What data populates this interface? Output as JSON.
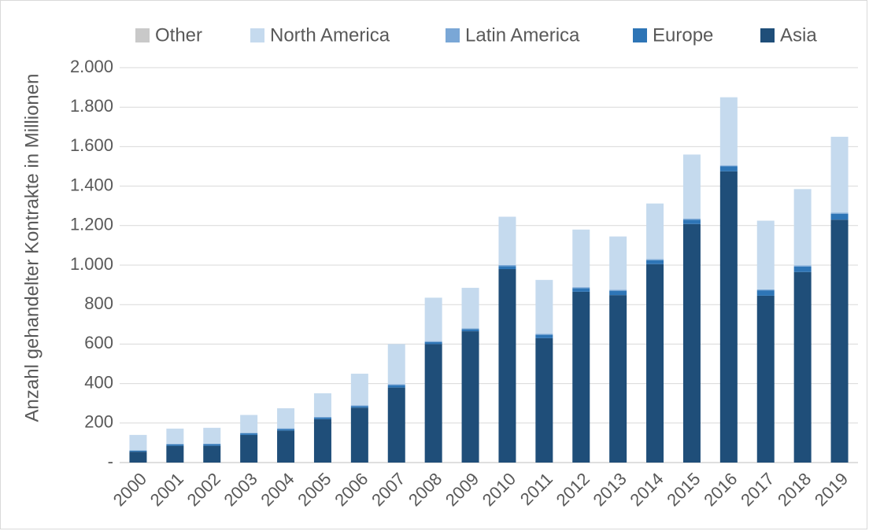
{
  "chart_data": {
    "type": "stacked_bar",
    "y_label": "Anzahl gehandelter Kontrakte in Millionen",
    "categories": [
      "2000",
      "2001",
      "2002",
      "2003",
      "2004",
      "2005",
      "2006",
      "2007",
      "2008",
      "2009",
      "2010",
      "2011",
      "2012",
      "2013",
      "2014",
      "2015",
      "2016",
      "2017",
      "2018",
      "2019"
    ],
    "series": [
      {
        "name": "Other",
        "color": "#c9c9c9",
        "values": [
          0,
          0,
          0,
          0,
          0,
          0,
          0,
          0,
          0,
          0,
          0,
          0,
          0,
          0,
          0,
          0,
          0,
          0,
          0,
          0
        ]
      },
      {
        "name": "North America",
        "color": "#c5daee",
        "values": [
          78,
          77,
          80,
          90,
          102,
          120,
          160,
          203,
          220,
          205,
          245,
          273,
          292,
          270,
          282,
          325,
          345,
          348,
          387,
          385
        ]
      },
      {
        "name": "Latin America",
        "color": "#7aa7d6",
        "values": [
          2,
          3,
          3,
          3,
          3,
          3,
          4,
          5,
          5,
          5,
          5,
          5,
          5,
          5,
          5,
          5,
          5,
          5,
          5,
          5
        ]
      },
      {
        "name": "Europe",
        "color": "#2e75b6",
        "values": [
          5,
          7,
          8,
          8,
          8,
          8,
          8,
          12,
          10,
          10,
          15,
          17,
          18,
          22,
          20,
          22,
          25,
          27,
          28,
          30
        ]
      },
      {
        "name": "Asia",
        "color": "#1f4e79",
        "values": [
          55,
          85,
          85,
          140,
          162,
          220,
          278,
          380,
          600,
          665,
          980,
          630,
          865,
          848,
          1005,
          1208,
          1475,
          845,
          965,
          1230
        ]
      }
    ],
    "ylim": [
      0,
      2000
    ],
    "yticks": [
      {
        "value": 0,
        "label": "-"
      },
      200,
      400,
      600,
      800,
      {
        "value": 1000,
        "label": "1.000"
      },
      {
        "value": 1200,
        "label": "1.200"
      },
      {
        "value": 1400,
        "label": "1.400"
      },
      {
        "value": 1600,
        "label": "1.600"
      },
      {
        "value": 1800,
        "label": "1.800"
      },
      {
        "value": 2000,
        "label": "2.000"
      }
    ],
    "grid": true,
    "legend": "top"
  }
}
